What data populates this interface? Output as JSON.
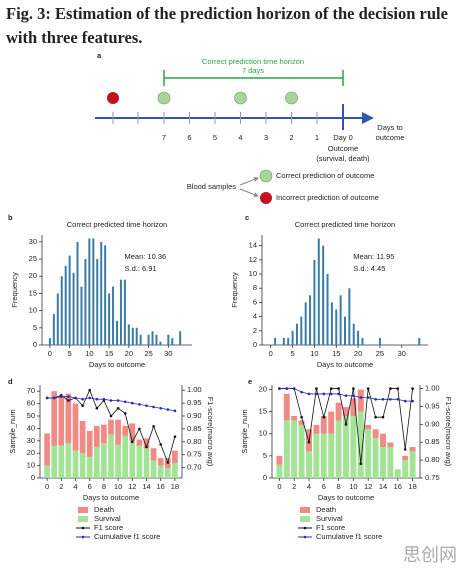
{
  "caption": "Fig. 3: Estimation of the prediction horizon of the decision rule with three features.",
  "diagram": {
    "label": "a",
    "horizon_title": "Correct prediction time horizon",
    "horizon_length": "7 days",
    "ticks": [
      "7",
      "6",
      "5",
      "4",
      "3",
      "2",
      "1",
      "Day 0"
    ],
    "axis_label": [
      "Days to",
      "outcome"
    ],
    "outcome": [
      "Outcome",
      "(survival, death)"
    ],
    "legend_title": "Blood samples",
    "legend": [
      "Correct prediction of outcome",
      "Incorrect prediction of outcome"
    ]
  },
  "chart_data": [
    {
      "type": "histogram",
      "label": "b",
      "title": "Correct predicted time horizon",
      "xlabel": "Days to outcome",
      "ylabel": "Frequency",
      "color": "#3a7ca5",
      "x": [
        0,
        1,
        2,
        3,
        4,
        5,
        6,
        7,
        8,
        9,
        10,
        11,
        12,
        13,
        14,
        15,
        16,
        17,
        18,
        19,
        20,
        21,
        22,
        23,
        25,
        26,
        27,
        28,
        30,
        31,
        33
      ],
      "values": [
        2,
        9,
        15,
        20,
        23,
        26,
        21,
        30,
        17,
        25,
        31,
        31,
        25,
        30,
        29,
        15,
        17,
        7,
        19,
        19,
        6,
        5,
        5,
        3,
        3,
        4,
        3,
        1,
        3,
        2,
        4
      ],
      "annotations": [
        "Mean: 10.36",
        "S.d.: 6.91"
      ],
      "xlim": [
        -2,
        36
      ],
      "ylim": [
        0,
        32
      ],
      "xticks": [
        0,
        5,
        10,
        15,
        20,
        25,
        30
      ],
      "yticks": [
        0,
        5,
        10,
        15,
        20,
        25,
        30
      ]
    },
    {
      "type": "histogram",
      "label": "c",
      "title": "Correct predicted time horizon",
      "xlabel": "Days to outcome",
      "ylabel": "Frequency",
      "color": "#3a7ca5",
      "x": [
        1,
        3,
        4,
        5,
        6,
        7,
        8,
        9,
        10,
        11,
        12,
        13,
        14,
        15,
        16,
        17,
        18,
        19,
        20,
        21,
        25,
        34
      ],
      "values": [
        1,
        1,
        1,
        2,
        3,
        4,
        6,
        7,
        12,
        15,
        14,
        10,
        6,
        5,
        7,
        4,
        8,
        3,
        2,
        1,
        1,
        1
      ],
      "annotations": [
        "Mean: 11.95",
        "S.d.: 4.45"
      ],
      "xlim": [
        -2,
        36
      ],
      "ylim": [
        0,
        15.5
      ],
      "xticks": [
        0,
        5,
        10,
        15,
        20,
        25,
        30
      ],
      "yticks": [
        0,
        2,
        4,
        6,
        8,
        10,
        12,
        14
      ]
    },
    {
      "type": "combo",
      "label": "d",
      "xlabel": "Days to outcome",
      "ylabel": "Sample_num",
      "y2label": "F1-score(macro avg)",
      "x": [
        0,
        1,
        2,
        3,
        4,
        5,
        6,
        7,
        8,
        9,
        10,
        11,
        12,
        13,
        14,
        15,
        16,
        17,
        18
      ],
      "series": [
        {
          "name": "Death",
          "kind": "bar",
          "color": "#f08a84",
          "values": [
            26,
            44,
            40,
            40,
            38,
            26,
            21,
            17,
            15,
            12,
            20,
            8,
            14,
            5,
            8,
            10,
            6,
            8,
            10
          ]
        },
        {
          "name": "Survival",
          "kind": "bar",
          "color": "#a3e396",
          "values": [
            10,
            26,
            26,
            28,
            22,
            20,
            17,
            25,
            28,
            35,
            27,
            34,
            30,
            26,
            24,
            14,
            10,
            8,
            12
          ]
        },
        {
          "name": "F1 score",
          "kind": "line",
          "axis": "y2",
          "color": "#111111",
          "values": [
            0.97,
            0.97,
            0.98,
            0.96,
            0.97,
            0.94,
            1.0,
            0.93,
            0.96,
            0.9,
            0.93,
            0.91,
            0.8,
            0.85,
            0.78,
            0.86,
            0.79,
            0.72,
            0.82
          ]
        },
        {
          "name": "Cumulative f1 score",
          "kind": "line",
          "axis": "y2",
          "color": "#2a2ab8",
          "values": [
            0.97,
            0.97,
            0.975,
            0.975,
            0.97,
            0.965,
            0.97,
            0.965,
            0.965,
            0.96,
            0.96,
            0.955,
            0.95,
            0.945,
            0.94,
            0.935,
            0.93,
            0.925,
            0.92
          ]
        }
      ],
      "xlim": [
        -1,
        19
      ],
      "ylim": [
        0,
        75
      ],
      "y2lim": [
        0.66,
        1.02
      ],
      "xticks": [
        0,
        2,
        4,
        6,
        8,
        10,
        12,
        14,
        16,
        18
      ],
      "yticks": [
        0,
        10,
        20,
        30,
        40,
        50,
        60,
        70
      ],
      "y2ticks": [
        {
          "value": 0.7,
          "label": "0.70"
        },
        0.75,
        {
          "value": 0.8,
          "label": "0.80"
        },
        0.85,
        {
          "value": 0.9,
          "label": "0.90"
        },
        0.95,
        {
          "value": 1.0,
          "label": "1.00"
        }
      ]
    },
    {
      "type": "combo",
      "label": "e",
      "xlabel": "Days to outcome",
      "ylabel": "Sample_num",
      "y2label": "F1-score(macro avg)",
      "x": [
        0,
        1,
        2,
        3,
        4,
        5,
        6,
        7,
        8,
        9,
        10,
        11,
        12,
        13,
        14,
        15,
        16,
        17,
        18
      ],
      "series": [
        {
          "name": "Death",
          "kind": "bar",
          "color": "#f08a84",
          "values": [
            2,
            6,
            1,
            1,
            5,
            2,
            4,
            5,
            4,
            2,
            4,
            5,
            1,
            2,
            3,
            1,
            0,
            1,
            1
          ]
        },
        {
          "name": "Survival",
          "kind": "bar",
          "color": "#a3e396",
          "values": [
            3,
            13,
            13,
            12,
            6,
            10,
            10,
            10,
            13,
            14,
            14,
            15,
            11,
            9,
            7,
            7,
            2,
            4,
            6
          ]
        },
        {
          "name": "F1 score",
          "kind": "line",
          "axis": "y2",
          "color": "#111111",
          "values": [
            1.0,
            1.0,
            1.0,
            0.92,
            0.85,
            1.0,
            0.92,
            1.0,
            1.0,
            0.9,
            1.0,
            0.79,
            1.0,
            0.92,
            0.92,
            1.0,
            1.0,
            0.83,
            1.0
          ]
        },
        {
          "name": "Cumulative f1 score",
          "kind": "line",
          "axis": "y2",
          "color": "#2a2ab8",
          "values": [
            1.0,
            1.0,
            1.0,
            0.99,
            0.985,
            0.985,
            0.985,
            0.985,
            0.985,
            0.98,
            0.98,
            0.975,
            0.975,
            0.97,
            0.97,
            0.97,
            0.97,
            0.965,
            0.965
          ]
        }
      ],
      "xlim": [
        -1,
        19
      ],
      "ylim": [
        0,
        21
      ],
      "y2lim": [
        0.75,
        1.01
      ],
      "xticks": [
        0,
        2,
        4,
        6,
        8,
        10,
        12,
        14,
        16,
        18
      ],
      "yticks": [
        0,
        5,
        10,
        15,
        20
      ],
      "y2ticks": [
        0.75,
        {
          "value": 0.8,
          "label": "0.80"
        },
        0.85,
        {
          "value": 0.9,
          "label": "0.90"
        },
        0.95,
        {
          "value": 1.0,
          "label": "1.00"
        }
      ]
    }
  ],
  "watermark": "思创网"
}
